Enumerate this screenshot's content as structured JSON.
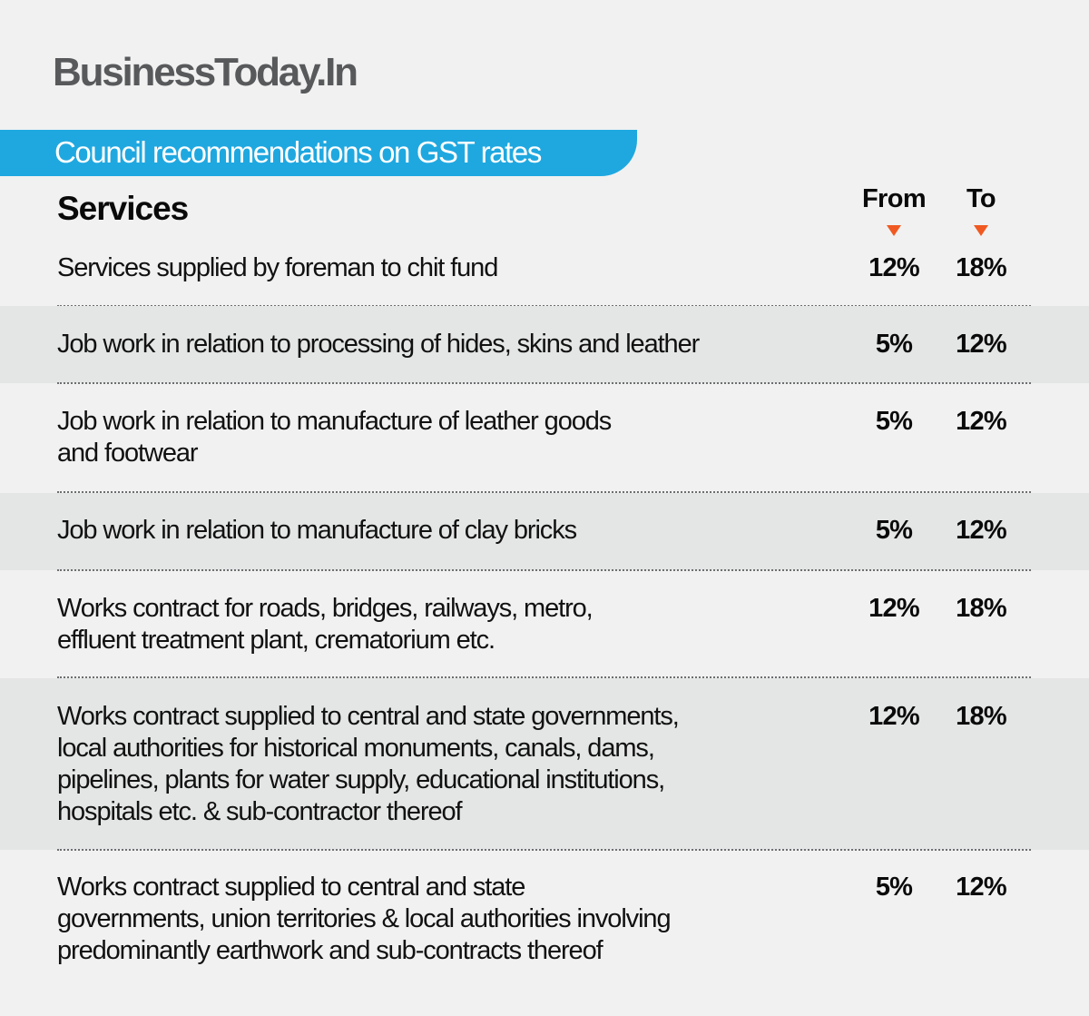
{
  "brand": {
    "logo_text": "BusinessToday.In",
    "logo_color": "#58595b"
  },
  "banner": {
    "title": "Council recommendations on GST rates",
    "color": "#1fa8e0"
  },
  "table": {
    "section_title": "Services",
    "columns": {
      "from": "From",
      "to": "To"
    },
    "arrow_color": "#f05a22",
    "rows": [
      {
        "description": "Services supplied by foreman to chit fund",
        "from": "12%",
        "to": "18%"
      },
      {
        "description": "Job work in relation to processing of hides, skins and leather",
        "from": "5%",
        "to": "12%"
      },
      {
        "description": "Job work in relation to manufacture of leather goods\nand footwear",
        "from": "5%",
        "to": "12%"
      },
      {
        "description": "Job work in relation to manufacture of clay bricks",
        "from": "5%",
        "to": "12%"
      },
      {
        "description": "Works contract for roads, bridges, railways, metro,\neffluent treatment plant, crematorium etc.",
        "from": "12%",
        "to": "18%"
      },
      {
        "description": "Works contract supplied to central and state governments,\nlocal authorities for historical monuments, canals, dams,\npipelines, plants for water supply, educational institutions,\nhospitals etc. & sub-contractor thereof",
        "from": "12%",
        "to": "18%"
      },
      {
        "description": "Works contract supplied to central and state\ngovernments, union territories & local authorities involving\npredominantly earthwork and sub-contracts thereof",
        "from": "5%",
        "to": "12%"
      }
    ]
  }
}
